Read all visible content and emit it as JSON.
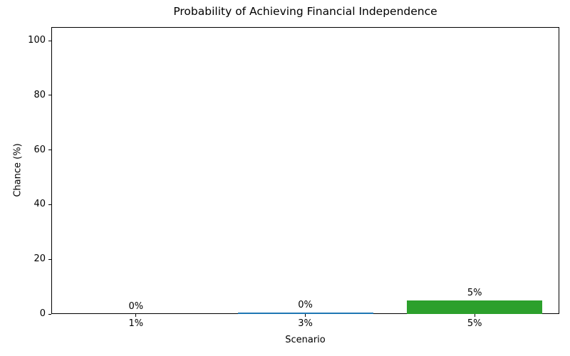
{
  "chart_data": {
    "type": "bar",
    "title": "Probability of Achieving Financial Independence",
    "xlabel": "Scenario",
    "ylabel": "Chance (%)",
    "categories": [
      "1%",
      "3%",
      "5%"
    ],
    "values": [
      0,
      0.5,
      5
    ],
    "bar_labels": [
      "0%",
      "0%",
      "5%"
    ],
    "bar_colors": [
      "#1f77b4",
      "#1f77b4",
      "#2ca02c"
    ],
    "yticks": [
      0,
      20,
      40,
      60,
      80,
      100
    ],
    "ylim": [
      0,
      105
    ],
    "grid": false,
    "legend_position": "none",
    "bar_width_fraction": 0.8
  },
  "colors": {
    "background": "#ffffff",
    "text": "#000000",
    "spine": "#000000"
  }
}
